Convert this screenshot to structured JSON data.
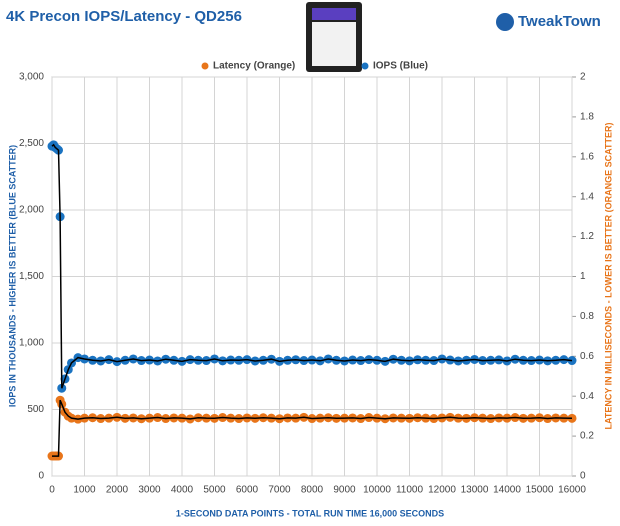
{
  "chart_data": {
    "type": "scatter",
    "title": "4K Precon IOPS/Latency - QD256",
    "brand": "TweakTown",
    "x_label": "1-SECOND  DATA POINTS - TOTAL RUN TIME 16,000 SECONDS",
    "y_label": "IOPS IN THOUSANDS - HIGHER IS BETTER (BLUE SCATTER)",
    "y2_label": "LATENCY IN MILLISECONDS - LOWER IS BETTER (ORANGE SCATTER)",
    "grid": true,
    "legend": "top",
    "xlim": [
      0,
      16000
    ],
    "xticks": [
      0,
      1000,
      2000,
      3000,
      4000,
      5000,
      6000,
      7000,
      8000,
      9000,
      10000,
      11000,
      12000,
      13000,
      14000,
      15000,
      16000
    ],
    "ylim": [
      0,
      3000
    ],
    "yticks": [
      0,
      500,
      {
        "value": 1000,
        "label": "1,000"
      },
      {
        "value": 1500,
        "label": "1,500"
      },
      {
        "value": 2000,
        "label": "2,000"
      },
      {
        "value": 2500,
        "label": "2,500"
      },
      {
        "value": 3000,
        "label": "3,000"
      }
    ],
    "y2lim": [
      0,
      2
    ],
    "y2ticks": [
      0,
      0.2,
      0.4,
      0.6,
      0.8,
      1,
      1.2,
      1.4,
      1.6,
      1.8,
      2
    ],
    "x": [
      0,
      50,
      100,
      150,
      200,
      250,
      300,
      400,
      500,
      600,
      800,
      1000,
      1250,
      1500,
      1750,
      2000,
      2250,
      2500,
      2750,
      3000,
      3250,
      3500,
      3750,
      4000,
      4250,
      4500,
      4750,
      5000,
      5250,
      5500,
      5750,
      6000,
      6250,
      6500,
      6750,
      7000,
      7250,
      7500,
      7750,
      8000,
      8250,
      8500,
      8750,
      9000,
      9250,
      9500,
      9750,
      10000,
      10250,
      10500,
      10750,
      11000,
      11250,
      11500,
      11750,
      12000,
      12250,
      12500,
      12750,
      13000,
      13250,
      13500,
      13750,
      14000,
      14250,
      14500,
      14750,
      15000,
      15250,
      15500,
      15750,
      16000
    ],
    "series": [
      {
        "name": "Latency (Orange)",
        "color": "#e8751a",
        "axis": "y2",
        "values": [
          0.1,
          0.1,
          0.1,
          0.1,
          0.1,
          0.38,
          0.36,
          0.32,
          0.3,
          0.29,
          0.285,
          0.29,
          0.292,
          0.288,
          0.29,
          0.294,
          0.289,
          0.291,
          0.287,
          0.29,
          0.293,
          0.288,
          0.291,
          0.29,
          0.286,
          0.292,
          0.29,
          0.289,
          0.293,
          0.29,
          0.288,
          0.291,
          0.289,
          0.292,
          0.29,
          0.287,
          0.291,
          0.29,
          0.294,
          0.288,
          0.29,
          0.292,
          0.289,
          0.29,
          0.291,
          0.288,
          0.293,
          0.29,
          0.287,
          0.291,
          0.29,
          0.289,
          0.292,
          0.29,
          0.288,
          0.291,
          0.294,
          0.29,
          0.289,
          0.292,
          0.29,
          0.288,
          0.291,
          0.29,
          0.293,
          0.289,
          0.29,
          0.292,
          0.288,
          0.291,
          0.29,
          0.289
        ]
      },
      {
        "name": "IOPS (Blue)",
        "color": "#1a73c1",
        "values": [
          2480,
          2490,
          2470,
          2460,
          2450,
          1950,
          660,
          730,
          800,
          850,
          890,
          880,
          870,
          865,
          875,
          860,
          870,
          880,
          868,
          872,
          865,
          878,
          870,
          862,
          875,
          870,
          868,
          880,
          866,
          872,
          870,
          875,
          865,
          870,
          878,
          862,
          870,
          874,
          868,
          872,
          866,
          880,
          870,
          865,
          872,
          868,
          875,
          870,
          862,
          878,
          870,
          866,
          874,
          870,
          868,
          880,
          872,
          865,
          870,
          876,
          868,
          870,
          873,
          865,
          878,
          870,
          868,
          872,
          866,
          870,
          875,
          868
        ]
      }
    ]
  }
}
